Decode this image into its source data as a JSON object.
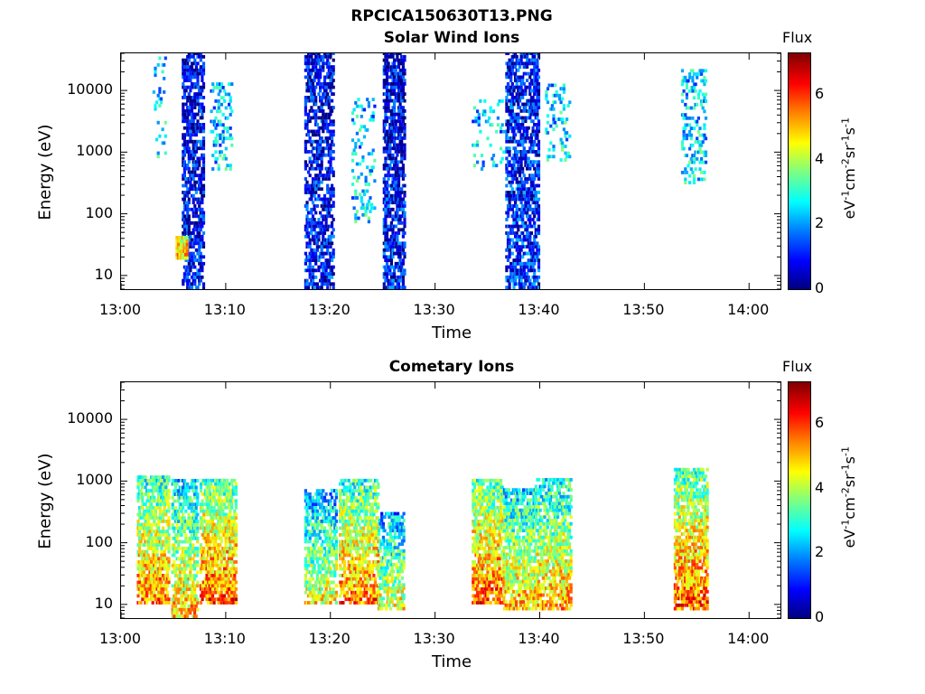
{
  "figure": {
    "filename_title": "RPCICA150630T13.PNG"
  },
  "colorbar": {
    "label": "Flux",
    "unit": "eV^-1 cm^-2 sr^-1 s^-1",
    "ticks": [
      "0",
      "2",
      "4",
      "6"
    ],
    "range": [
      0,
      7.3
    ]
  },
  "chart_data": [
    {
      "type": "heatmap",
      "title": "Solar Wind Ions",
      "xlabel": "Time",
      "ylabel": "Energy (eV)",
      "x_ticks": [
        "13:00",
        "13:10",
        "13:20",
        "13:30",
        "13:40",
        "13:50",
        "14:00"
      ],
      "y_ticks": [
        "10",
        "100",
        "1000",
        "10000"
      ],
      "y_scale": "log",
      "ylim": [
        6,
        40000
      ],
      "xlim": [
        "13:00",
        "14:03"
      ],
      "bursts": [
        {
          "t_start": 3.0,
          "t_end": 4.2,
          "e_min": 700,
          "e_max": 35000,
          "flux_mean": 2.5,
          "density": 0.15
        },
        {
          "t_start": 5.8,
          "t_end": 7.8,
          "e_min": 6,
          "e_max": 40000,
          "flux_mean": 1.0,
          "density": 0.55
        },
        {
          "t_start": 5.2,
          "t_end": 6.2,
          "e_min": 18,
          "e_max": 40,
          "flux_mean": 4.8,
          "density": 0.9
        },
        {
          "t_start": 8.5,
          "t_end": 10.5,
          "e_min": 500,
          "e_max": 12000,
          "flux_mean": 2.4,
          "density": 0.25
        },
        {
          "t_start": 17.5,
          "t_end": 20.3,
          "e_min": 6,
          "e_max": 40000,
          "flux_mean": 1.0,
          "density": 0.5
        },
        {
          "t_start": 22.0,
          "t_end": 24.2,
          "e_min": 70,
          "e_max": 7000,
          "flux_mean": 2.5,
          "density": 0.15
        },
        {
          "t_start": 25.0,
          "t_end": 27.0,
          "e_min": 6,
          "e_max": 40000,
          "flux_mean": 1.0,
          "density": 0.6
        },
        {
          "t_start": 33.5,
          "t_end": 36.5,
          "e_min": 500,
          "e_max": 7000,
          "flux_mean": 2.4,
          "density": 0.15
        },
        {
          "t_start": 36.7,
          "t_end": 39.8,
          "e_min": 6,
          "e_max": 40000,
          "flux_mean": 1.2,
          "density": 0.55
        },
        {
          "t_start": 40.5,
          "t_end": 42.8,
          "e_min": 700,
          "e_max": 12000,
          "flux_mean": 2.6,
          "density": 0.2
        },
        {
          "t_start": 53.5,
          "t_end": 55.8,
          "e_min": 300,
          "e_max": 20000,
          "flux_mean": 2.6,
          "density": 0.25
        }
      ]
    },
    {
      "type": "heatmap",
      "title": "Cometary Ions",
      "xlabel": "Time",
      "ylabel": "Energy (eV)",
      "x_ticks": [
        "13:00",
        "13:10",
        "13:20",
        "13:30",
        "13:40",
        "13:50",
        "14:00"
      ],
      "y_ticks": [
        "10",
        "100",
        "1000",
        "10000"
      ],
      "y_scale": "log",
      "ylim": [
        6,
        40000
      ],
      "xlim": [
        "13:00",
        "14:03"
      ],
      "bursts": [
        {
          "t_start": 1.5,
          "t_end": 4.5,
          "e_min": 10,
          "e_max": 1200,
          "flux_mean": 5.5,
          "density": 0.65
        },
        {
          "t_start": 4.8,
          "t_end": 7.3,
          "e_min": 6,
          "e_max": 1000,
          "flux_mean": 5.0,
          "density": 0.6
        },
        {
          "t_start": 7.5,
          "t_end": 11.0,
          "e_min": 10,
          "e_max": 1000,
          "flux_mean": 5.8,
          "density": 0.65
        },
        {
          "t_start": 17.5,
          "t_end": 20.5,
          "e_min": 10,
          "e_max": 700,
          "flux_mean": 4.5,
          "density": 0.55
        },
        {
          "t_start": 20.8,
          "t_end": 24.5,
          "e_min": 10,
          "e_max": 1000,
          "flux_mean": 5.6,
          "density": 0.6
        },
        {
          "t_start": 24.5,
          "t_end": 27.0,
          "e_min": 8,
          "e_max": 300,
          "flux_mean": 4.5,
          "density": 0.55
        },
        {
          "t_start": 33.5,
          "t_end": 36.5,
          "e_min": 10,
          "e_max": 1000,
          "flux_mean": 5.8,
          "density": 0.65
        },
        {
          "t_start": 36.5,
          "t_end": 39.5,
          "e_min": 8,
          "e_max": 700,
          "flux_mean": 5.0,
          "density": 0.6
        },
        {
          "t_start": 39.5,
          "t_end": 43.0,
          "e_min": 8,
          "e_max": 1000,
          "flux_mean": 5.2,
          "density": 0.6
        },
        {
          "t_start": 52.8,
          "t_end": 56.0,
          "e_min": 8,
          "e_max": 1500,
          "flux_mean": 5.8,
          "density": 0.65
        }
      ]
    }
  ]
}
